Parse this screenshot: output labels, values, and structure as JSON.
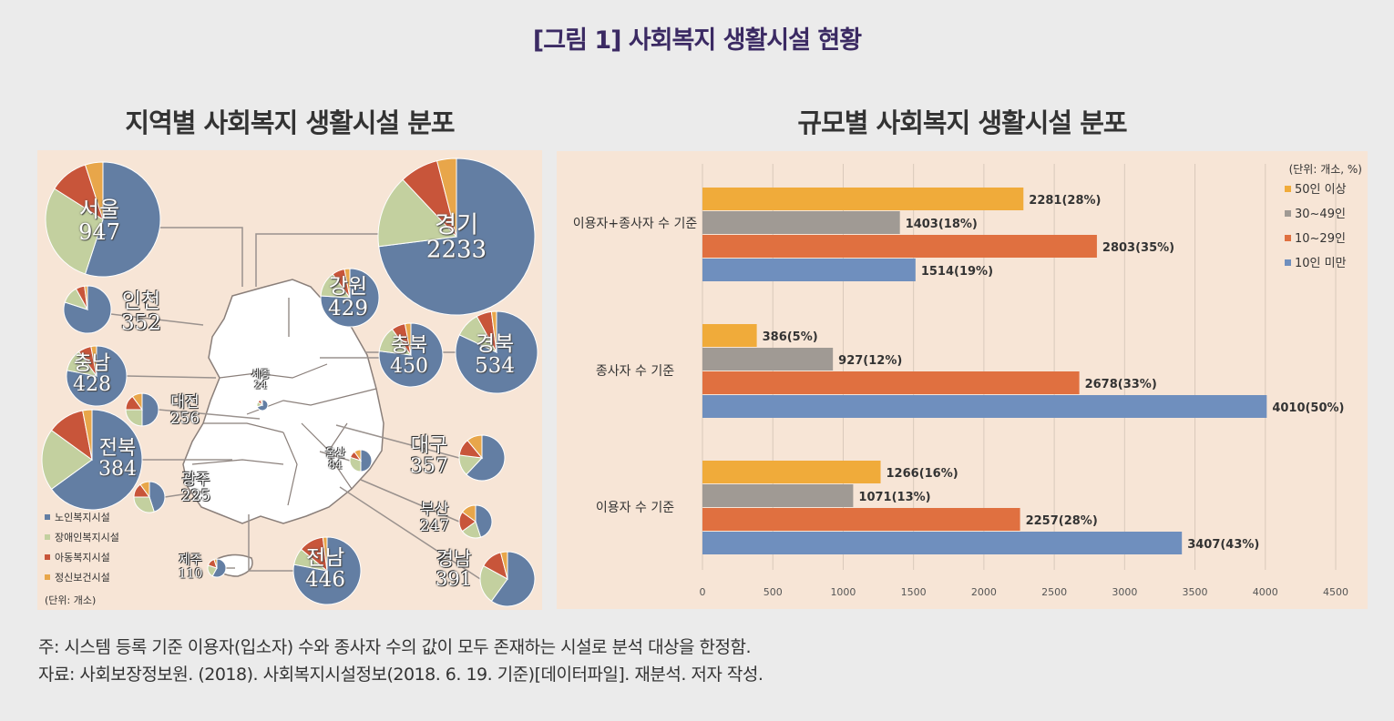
{
  "figure_title": "[그림 1] 사회복지 생활시설 현황",
  "left_title": "지역별 사회복지 생활시설 분포",
  "right_title": "규모별 사회복지 생활시설 분포",
  "colors": {
    "elder": "#637ea3",
    "disabled": "#c3d09f",
    "child": "#c8553a",
    "mental": "#e8a64a",
    "c50": "#f0ab3a",
    "c30": "#a09a94",
    "c10": "#e07040",
    "lt10": "#6f8fbe"
  },
  "map": {
    "legend": [
      "노인복지시설",
      "장애인복지시설",
      "아동복지시설",
      "정신보건시설"
    ],
    "unit": "(단위: 개소)",
    "regions": [
      {
        "name": "서울",
        "value": "947",
        "shares": [
          0.55,
          0.29,
          0.11,
          0.05
        ]
      },
      {
        "name": "경기",
        "value": "2233",
        "shares": [
          0.73,
          0.15,
          0.08,
          0.04
        ]
      },
      {
        "name": "인천",
        "value": "352",
        "shares": [
          0.8,
          0.12,
          0.06,
          0.02
        ]
      },
      {
        "name": "강원",
        "value": "429",
        "shares": [
          0.76,
          0.14,
          0.07,
          0.03
        ]
      },
      {
        "name": "충남",
        "value": "428",
        "shares": [
          0.78,
          0.12,
          0.07,
          0.03
        ]
      },
      {
        "name": "충북",
        "value": "450",
        "shares": [
          0.77,
          0.13,
          0.07,
          0.03
        ]
      },
      {
        "name": "경북",
        "value": "534",
        "shares": [
          0.82,
          0.1,
          0.06,
          0.02
        ]
      },
      {
        "name": "대전",
        "value": "256",
        "shares": [
          0.5,
          0.25,
          0.15,
          0.1
        ]
      },
      {
        "name": "세종",
        "value": "24",
        "shares": [
          0.7,
          0.15,
          0.1,
          0.05
        ]
      },
      {
        "name": "전북",
        "value": "384",
        "shares": [
          0.65,
          0.2,
          0.12,
          0.03
        ]
      },
      {
        "name": "대구",
        "value": "357",
        "shares": [
          0.62,
          0.15,
          0.12,
          0.11
        ]
      },
      {
        "name": "울산",
        "value": "84",
        "shares": [
          0.5,
          0.3,
          0.1,
          0.1
        ]
      },
      {
        "name": "광주",
        "value": "225",
        "shares": [
          0.45,
          0.3,
          0.15,
          0.1
        ]
      },
      {
        "name": "부산",
        "value": "247",
        "shares": [
          0.45,
          0.2,
          0.2,
          0.15
        ]
      },
      {
        "name": "제주",
        "value": "110",
        "shares": [
          0.58,
          0.22,
          0.15,
          0.05
        ]
      },
      {
        "name": "전남",
        "value": "446",
        "shares": [
          0.78,
          0.08,
          0.12,
          0.02
        ]
      },
      {
        "name": "경남",
        "value": "391",
        "shares": [
          0.6,
          0.23,
          0.13,
          0.04
        ]
      }
    ]
  },
  "bar_chart": {
    "unit": "(단위: 개소, %)",
    "legend": [
      "50인 이상",
      "30~49인",
      "10~29인",
      "10인 미만"
    ],
    "groups": [
      {
        "label": "이용자+종사자 수 기준",
        "values": [
          2281,
          1403,
          2803,
          1514
        ],
        "labels": [
          "2281(28%)",
          "1403(18%)",
          "2803(35%)",
          "1514(19%)"
        ]
      },
      {
        "label": "종사자 수 기준",
        "values": [
          386,
          927,
          2678,
          4010
        ],
        "labels": [
          "386(5%)",
          "927(12%)",
          "2678(33%)",
          "4010(50%)"
        ]
      },
      {
        "label": "이용자 수 기준",
        "values": [
          1266,
          1071,
          2257,
          3407
        ],
        "labels": [
          "1266(16%)",
          "1071(13%)",
          "2257(28%)",
          "3407(43%)"
        ]
      }
    ],
    "ticks": [
      "0",
      "500",
      "1000",
      "1500",
      "2000",
      "2500",
      "3000",
      "3500",
      "4000",
      "4500"
    ]
  },
  "chart_data": [
    {
      "type": "pie",
      "title": "지역별 사회복지 생활시설 분포",
      "categories": [
        "노인복지시설",
        "장애인복지시설",
        "아동복지시설",
        "정신보건시설"
      ],
      "regions": [
        "서울",
        "경기",
        "인천",
        "강원",
        "충남",
        "충북",
        "경북",
        "대전",
        "세종",
        "전북",
        "대구",
        "울산",
        "광주",
        "부산",
        "제주",
        "전남",
        "경남"
      ],
      "totals": [
        947,
        2233,
        352,
        429,
        428,
        450,
        534,
        256,
        24,
        384,
        357,
        84,
        225,
        247,
        110,
        446,
        391
      ]
    },
    {
      "type": "bar",
      "orientation": "horizontal",
      "title": "규모별 사회복지 생활시설 분포",
      "categories": [
        "이용자+종사자 수 기준",
        "종사자 수 기준",
        "이용자 수 기준"
      ],
      "series": [
        {
          "name": "50인 이상",
          "values": [
            2281,
            386,
            1266
          ]
        },
        {
          "name": "30~49인",
          "values": [
            1403,
            927,
            1071
          ]
        },
        {
          "name": "10~29인",
          "values": [
            2803,
            2678,
            2257
          ]
        },
        {
          "name": "10인 미만",
          "values": [
            1514,
            4010,
            3407
          ]
        }
      ],
      "xlim": [
        0,
        4500
      ]
    }
  ],
  "notes": [
    "주: 시스템 등록 기준 이용자(입소자) 수와 종사자 수의 값이 모두 존재하는 시설로 분석 대상을 한정함.",
    "자료: 사회보장정보원. (2018). 사회복지시설정보(2018. 6. 19. 기준)[데이터파일]. 재분석. 저자 작성."
  ]
}
